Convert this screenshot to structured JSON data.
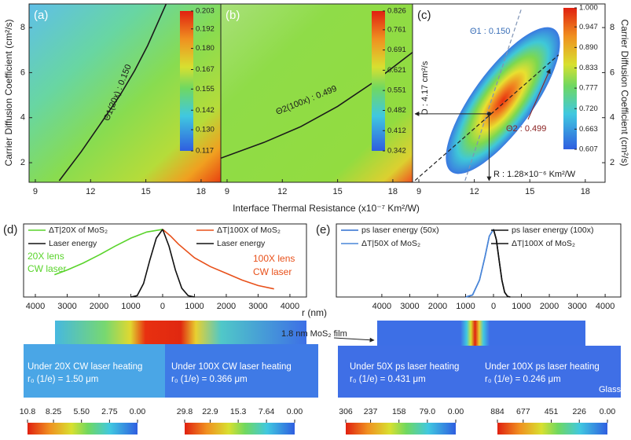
{
  "chart_data": [
    {
      "type": "heatmap",
      "panel_label": "(a)",
      "ylabel": "Carrier Diffusion Coefficient (cm²/s)",
      "xlim": [
        8.66,
        19.07
      ],
      "ylim": [
        1.13,
        9.05
      ],
      "xticks": [
        9,
        12,
        15,
        18
      ],
      "yticks": [
        2,
        4,
        6,
        8
      ],
      "colorbar_ticks": [
        0.203,
        0.192,
        {
          "value": 0.18,
          "label": "0.180"
        },
        0.167,
        0.155,
        0.142,
        {
          "value": 0.13,
          "label": "0.130"
        },
        0.117
      ],
      "series": [
        {
          "color": "#1a1a1a",
          "x": [
            10.3,
            11.5,
            12.6,
            13.6,
            14.4,
            15.1,
            15.8,
            16.1
          ],
          "values": [
            1.2,
            2.5,
            3.8,
            5.0,
            6.1,
            7.2,
            8.5,
            9.05
          ]
        }
      ],
      "annotations": [
        {
          "text": "Θ1(20x) : 0.150",
          "color": "#1a1a1a"
        }
      ]
    },
    {
      "type": "heatmap",
      "panel_label": "(b)",
      "xlabel": "Interface Thermal Resistance (x10⁻⁷ Km²/W)",
      "xlim": [
        8.66,
        19.07
      ],
      "ylim": [
        1.13,
        9.05
      ],
      "xticks": [
        9,
        12,
        15,
        18
      ],
      "colorbar_ticks": [
        0.826,
        0.761,
        0.691,
        0.621,
        0.551,
        0.482,
        0.412,
        0.342
      ],
      "series": [
        {
          "color": "#1a1a1a",
          "x": [
            8.66,
            11,
            13,
            15,
            17,
            19.07
          ],
          "values": [
            2.2,
            2.9,
            3.6,
            4.5,
            5.6,
            6.9
          ]
        }
      ],
      "annotations": [
        {
          "text": "Θ2(100x) : 0.499",
          "color": "#1a1a1a"
        }
      ]
    },
    {
      "type": "heatmap",
      "panel_label": "(c)",
      "ylabel": "Carrier Diffusion Coefficient (cm²/s)",
      "yaxis": "right",
      "xlim": [
        8.66,
        19.07
      ],
      "ylim": [
        1.13,
        9.05
      ],
      "xticks": [
        9,
        12,
        15,
        18
      ],
      "yticks": [
        2,
        4,
        6,
        8
      ],
      "colorbar_ticks": [
        {
          "value": 1,
          "label": "1.000"
        },
        0.947,
        {
          "value": 0.89,
          "label": "0.890"
        },
        0.833,
        0.777,
        {
          "value": 0.72,
          "label": "0.720"
        },
        0.663,
        0.607
      ],
      "series": [
        {
          "color": "#7f93b5",
          "dash": true,
          "x": [
            11.5,
            14.56
          ],
          "values": [
            1.2,
            8.88
          ]
        },
        {
          "color": "#222222",
          "dash": true,
          "x": [
            8.79,
            16.56
          ],
          "values": [
            1.21,
            6.79
          ]
        }
      ],
      "point": {
        "x": 12.8,
        "y": 4.17
      },
      "annotations": [
        {
          "text": "Θ1 : 0.150",
          "color": "#3a6fb8"
        },
        {
          "text": "Θ2 : 0.499",
          "color": "#8a2020"
        },
        {
          "text": "D : 4.17 cm²/s",
          "color": "#1a1a1a"
        },
        {
          "text": "R : 1.28×10⁻⁶ Km²/W",
          "color": "#1a1a1a"
        }
      ]
    },
    {
      "type": "line",
      "panel_label": "(d)",
      "xlabel": "r (nm)",
      "xlim": [
        -4370,
        4520
      ],
      "ylim": [
        0,
        1.08
      ],
      "xticks": [
        {
          "value": -4000,
          "label": "4000"
        },
        {
          "value": -3000,
          "label": "3000"
        },
        {
          "value": -2000,
          "label": "2000"
        },
        {
          "value": -1000,
          "label": "1000"
        },
        0,
        1000,
        2000,
        3000,
        4000
      ],
      "series": [
        {
          "name": "ΔT|20X of MoS₂",
          "color": "#5ad42c",
          "legend_side": "left",
          "x": [
            -3400,
            -3000,
            -2500,
            -2000,
            -1500,
            -1000,
            -500,
            0
          ],
          "values": [
            0.33,
            0.4,
            0.5,
            0.62,
            0.75,
            0.87,
            0.96,
            1.0
          ]
        },
        {
          "name": "Laser energy",
          "color": "#111111",
          "legend_side": "left",
          "x": [
            -1000,
            -800,
            -600,
            -400,
            -200,
            0
          ],
          "values": [
            0,
            0.02,
            0.2,
            0.55,
            0.87,
            1.0
          ]
        },
        {
          "name": "ΔT|100X of MoS₂",
          "color": "#e8501a",
          "legend_side": "right",
          "x": [
            0,
            250,
            500,
            1000,
            1500,
            2000,
            2500,
            3000,
            3500
          ],
          "values": [
            1.0,
            0.9,
            0.78,
            0.58,
            0.45,
            0.35,
            0.25,
            0.17,
            0.12
          ]
        },
        {
          "name": "Laser energy",
          "color": "#111111",
          "legend_side": "right",
          "x": [
            0,
            200,
            400,
            600,
            800,
            1000
          ],
          "values": [
            1.0,
            0.75,
            0.4,
            0.13,
            0.02,
            0
          ]
        }
      ],
      "annotations": [
        {
          "text": "20X lens",
          "color": "#5ad42c"
        },
        {
          "text": "CW laser",
          "color": "#5ad42c"
        },
        {
          "text": "100X lens",
          "color": "#e8501a"
        },
        {
          "text": "CW laser",
          "color": "#e8501a"
        }
      ]
    },
    {
      "type": "line",
      "panel_label": "(e)",
      "xlim": [
        -5630,
        4560
      ],
      "ylim": [
        0,
        1.08
      ],
      "xticks": [
        {
          "value": -4000,
          "label": "4000"
        },
        {
          "value": -3000,
          "label": "3000"
        },
        {
          "value": -2000,
          "label": "2000"
        },
        {
          "value": -1000,
          "label": "1000"
        },
        0,
        1000,
        2000,
        3000,
        4000
      ],
      "series": [
        {
          "name": "ps laser energy (50x)",
          "color": "#2f6fd0",
          "legend_side": "left",
          "x": [
            -1000,
            -750,
            -500,
            -300,
            -150,
            0
          ],
          "values": [
            0,
            0.03,
            0.25,
            0.6,
            0.9,
            1.0
          ]
        },
        {
          "name": "ΔT|50X of MoS₂",
          "color": "#4a86d8",
          "legend_side": "left",
          "x": [
            -1000,
            -750,
            -500,
            -300,
            -150,
            0
          ],
          "values": [
            0,
            0.03,
            0.25,
            0.6,
            0.9,
            1.0
          ]
        },
        {
          "name": "ps laser energy (100x)",
          "color": "#111111",
          "legend_side": "right",
          "x": [
            0,
            100,
            200,
            300,
            400,
            500,
            600
          ],
          "values": [
            1.0,
            0.85,
            0.55,
            0.25,
            0.07,
            0.01,
            0
          ]
        },
        {
          "name": "ΔT|100X of MoS₂",
          "color": "#111111",
          "legend_side": "right",
          "x": [
            0,
            100,
            200,
            300,
            400,
            500,
            600
          ],
          "values": [
            1.0,
            0.85,
            0.55,
            0.25,
            0.07,
            0.01,
            0
          ]
        }
      ]
    },
    {
      "type": "field",
      "title": "Under 20X CW laser heating",
      "subtitle": "r₀ (1/e) = 1.50 μm",
      "colorbar_ticks": [
        10.8,
        8.25,
        {
          "value": 5.5,
          "label": "5.50"
        },
        2.75,
        {
          "value": 0,
          "label": "0.00"
        }
      ]
    },
    {
      "type": "field",
      "title": "Under 100X CW laser heating",
      "subtitle": "r₀ (1/e) = 0.366 μm",
      "colorbar_ticks": [
        29.8,
        22.9,
        15.3,
        7.64,
        {
          "value": 0,
          "label": "0.00"
        }
      ]
    },
    {
      "type": "field",
      "title": "Under 50X ps laser heating",
      "subtitle": "r₀ (1/e) = 0.431 μm",
      "colorbar_ticks": [
        306,
        237,
        158,
        {
          "value": 79,
          "label": "79.0"
        },
        {
          "value": 0,
          "label": "0.00"
        }
      ]
    },
    {
      "type": "field",
      "title": "Under 100X ps laser heating",
      "subtitle": "r₀ (1/e) = 0.246 μm",
      "colorbar_ticks": [
        884,
        677,
        451,
        226,
        {
          "value": 0,
          "label": "0.00"
        }
      ]
    }
  ],
  "film_label": "1.8 nm MoS₂ film",
  "substrate_label": "Glass"
}
